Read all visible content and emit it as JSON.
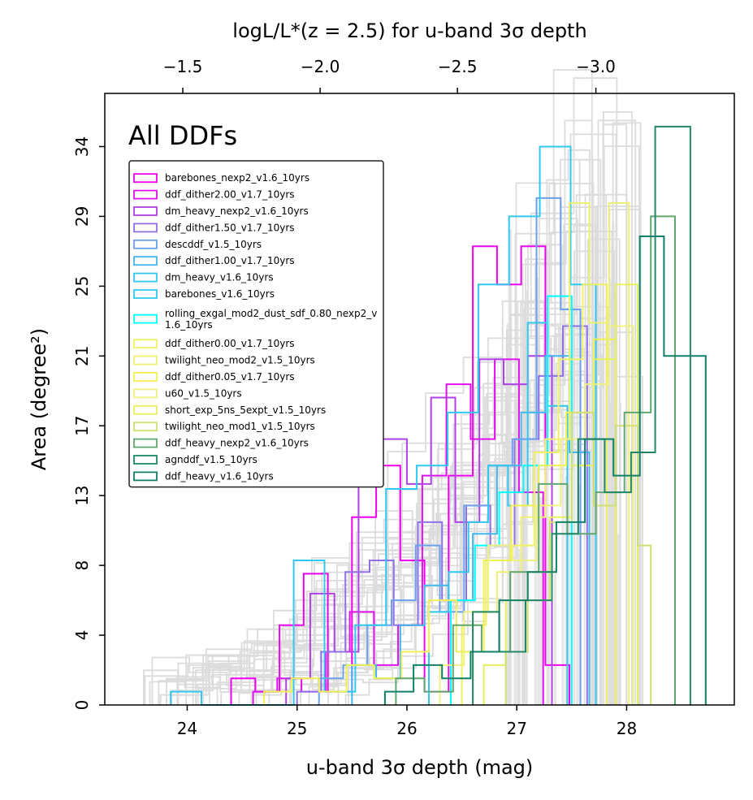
{
  "chart_data": {
    "type": "step-histogram",
    "annotation": "All DDFs",
    "xlabel": "u-band 3σ depth (mag)",
    "ylabel": "Area (degree²)",
    "top_axis_label": "logL/L*(z = 2.5) for u-band 3σ depth",
    "xlim": [
      23.25,
      28.98
    ],
    "ylim": [
      0,
      36.8
    ],
    "x_ticks": [
      24,
      25,
      26,
      27,
      28
    ],
    "x_tick_labels": [
      "24",
      "25",
      "26",
      "27",
      "28"
    ],
    "y_ticks": [
      0,
      4.2,
      8.4,
      12.6,
      16.8,
      21.0,
      25.2,
      29.4,
      33.6
    ],
    "y_tick_labels": [
      "0",
      "4",
      "8",
      "13",
      "17",
      "21",
      "25",
      "29",
      "34"
    ],
    "top_ticks": [
      {
        "x": 23.96,
        "label": "−1.5"
      },
      {
        "x": 25.21,
        "label": "−2.0"
      },
      {
        "x": 26.46,
        "label": "−2.5"
      },
      {
        "x": 27.72,
        "label": "−3.0"
      }
    ],
    "background_color": "#dcdcdc",
    "legend": {
      "position": "upper-left"
    },
    "series": [
      {
        "name": "barebones_nexp2_v1.6_10yrs",
        "color": "#ee00ee",
        "edges": [
          24.4,
          24.62,
          24.84,
          25.06,
          25.28,
          25.5,
          25.72,
          25.94,
          26.16,
          26.38,
          26.6,
          26.82,
          27.04,
          27.26,
          27.48
        ],
        "counts": [
          1.6,
          0.8,
          4.8,
          7.9,
          0.8,
          11.3,
          14.4,
          8.7,
          0.8,
          13.8,
          27.6,
          25.3,
          27.6,
          2.4
        ]
      },
      {
        "name": "ddf_dither2.00_v1.7_10yrs",
        "color": "#e010ee",
        "edges": [
          24.6,
          24.82,
          25.04,
          25.26,
          25.48,
          25.7,
          25.92,
          26.14,
          26.36,
          26.58,
          26.8,
          27.02,
          27.24
        ],
        "counts": [
          0.8,
          1.6,
          0.8,
          3.2,
          5.6,
          2.4,
          4.8,
          13.8,
          19.3,
          16.0,
          20.8,
          12.8
        ]
      },
      {
        "name": "dm_heavy_nexp2_v1.6_10yrs",
        "color": "#b040e8",
        "edges": [
          24.9,
          25.12,
          25.34,
          25.56,
          25.78,
          26.0,
          26.22,
          26.44,
          26.66,
          26.88,
          27.1,
          27.32
        ],
        "counts": [
          1.6,
          6.7,
          3.2,
          13.3,
          16.0,
          13.3,
          18.5,
          11.0,
          20.8,
          19.3,
          21.0
        ]
      },
      {
        "name": "ddf_dither1.50_v1.7_10yrs",
        "color": "#9070e8",
        "edges": [
          25.0,
          25.22,
          25.44,
          25.66,
          25.88,
          26.1,
          26.32,
          26.54,
          26.76,
          26.98,
          27.2,
          27.42,
          27.64
        ],
        "counts": [
          0.8,
          3.2,
          8.0,
          8.7,
          4.8,
          11.0,
          6.3,
          12.0,
          9.6,
          16.0,
          19.8,
          22.8
        ]
      },
      {
        "name": "descddf_v1.5_10yrs",
        "color": "#6aa0ee",
        "edges": [
          25.2,
          25.42,
          25.64,
          25.86,
          26.08,
          26.3,
          26.52,
          26.74,
          26.96,
          27.18,
          27.4,
          27.58
        ],
        "counts": [
          1.6,
          2.4,
          4.8,
          6.3,
          9.6,
          5.6,
          12.0,
          14.4,
          16.0,
          30.5,
          23.8
        ]
      },
      {
        "name": "ddf_dither1.00_v1.7_10yrs",
        "color": "#40b8ee",
        "edges": [
          25.5,
          25.72,
          25.94,
          26.16,
          26.38,
          26.6,
          26.82,
          27.04,
          27.26,
          27.48,
          27.66
        ],
        "counts": [
          2.4,
          1.6,
          4.8,
          7.2,
          6.3,
          10.3,
          14.4,
          17.6,
          21.0,
          15.2
        ]
      },
      {
        "name": "dm_heavy_v1.6_10yrs",
        "color": "#30c8ee",
        "edges": [
          26.2,
          26.38,
          26.56,
          26.74,
          26.92,
          27.1,
          27.28,
          27.46
        ],
        "counts": [
          5.6,
          8.0,
          11.0,
          14.4,
          12.0,
          23.0,
          18.0
        ]
      },
      {
        "name": "barebones_v1.6_10yrs",
        "color": "#30c8f0",
        "edges": [
          23.85,
          24.13,
          24.41,
          24.69,
          24.97,
          25.25,
          25.53,
          25.81,
          26.09,
          26.37,
          26.65,
          26.93,
          27.21,
          27.49,
          27.72
        ],
        "counts": [
          0.8,
          0,
          0,
          0,
          8.7,
          0.8,
          4.8,
          13.0,
          14.4,
          17.6,
          25.3,
          29.4,
          33.6,
          25.3
        ]
      },
      {
        "name": "rolling_exgal_mod2_dust_sdf_0.80_nexp2_v1.6_10yrs",
        "color": "#00ffff",
        "edges": [
          26.4,
          26.62,
          26.84,
          27.06,
          27.28,
          27.5
        ],
        "counts": [
          6.3,
          9.6,
          12.8,
          14.4,
          24.6
        ]
      },
      {
        "name": "ddf_dither0.00_v1.7_10yrs",
        "color": "#f0f060",
        "edges": [
          26.5,
          26.72,
          26.94,
          27.16,
          27.38,
          27.6,
          27.82
        ],
        "counts": [
          4.8,
          8.7,
          9.6,
          15.2,
          20.8,
          25.3
        ]
      },
      {
        "name": "twilight_neo_mod2_v1.5_10yrs",
        "color": "#f0f070",
        "edges": [
          26.6,
          26.82,
          27.04,
          27.26,
          27.48,
          27.66,
          27.84,
          28.02
        ],
        "counts": [
          5.6,
          8.0,
          11.3,
          16.0,
          30.2,
          23.0,
          30.2
        ]
      },
      {
        "name": "ddf_dither0.05_v1.7_10yrs",
        "color": "#f0f050",
        "edges": [
          24.7,
          24.95,
          25.2,
          25.45,
          25.7,
          25.95,
          26.2,
          26.45,
          26.7,
          26.95,
          27.2,
          27.45,
          27.7,
          27.9
        ],
        "counts": [
          0.8,
          1.6,
          0.8,
          2.4,
          1.6,
          3.2,
          6.3,
          3.2,
          8.7,
          12.0,
          14.4,
          17.6,
          22.0
        ]
      },
      {
        "name": "u60_v1.5_10yrs",
        "color": "#f0f080",
        "edges": [
          26.3,
          26.52,
          26.74,
          26.96,
          27.18,
          27.4,
          27.62,
          27.84,
          28.06
        ],
        "counts": [
          2.4,
          5.6,
          9.6,
          8.7,
          12.0,
          16.0,
          19.3,
          22.8
        ]
      },
      {
        "name": "short_exp_5ns_5expt_v1.5_10yrs",
        "color": "#e8f060",
        "edges": [
          26.7,
          26.9,
          27.1,
          27.3,
          27.5,
          27.7,
          27.9,
          28.1
        ],
        "counts": [
          2.4,
          6.3,
          8.0,
          11.3,
          14.4,
          20.8,
          25.3
        ]
      },
      {
        "name": "twilight_neo_mod1_v1.5_10yrs",
        "color": "#d0e070",
        "edges": [
          26.9,
          27.1,
          27.3,
          27.5,
          27.7,
          27.9,
          28.1,
          28.22
        ],
        "counts": [
          3.2,
          6.3,
          11.0,
          17.6,
          12.0,
          16.8,
          9.6
        ]
      },
      {
        "name": "ddf_heavy_nexp2_v1.6_10yrs",
        "color": "#60a870",
        "edges": [
          25.9,
          26.16,
          26.42,
          26.68,
          26.94,
          27.2,
          27.46,
          27.72,
          27.98,
          28.22,
          28.44
        ],
        "counts": [
          1.6,
          0.8,
          4.8,
          3.2,
          8.0,
          13.3,
          10.3,
          12.8,
          17.6,
          29.4
        ]
      },
      {
        "name": "agnddf_v1.5_10yrs",
        "color": "#208868",
        "edges": [
          26.6,
          26.84,
          27.08,
          27.32,
          27.56,
          27.8,
          28.04,
          28.26,
          28.58
        ],
        "counts": [
          5.6,
          3.2,
          6.3,
          10.3,
          16.0,
          12.8,
          15.2,
          34.8
        ]
      },
      {
        "name": "ddf_heavy_v1.6_10yrs",
        "color": "#108068",
        "edges": [
          25.8,
          26.06,
          26.32,
          26.58,
          26.84,
          27.1,
          27.36,
          27.62,
          27.88,
          28.12,
          28.34,
          28.72
        ],
        "counts": [
          0.8,
          2.4,
          1.6,
          3.2,
          6.3,
          8.0,
          11.0,
          16.0,
          13.8,
          28.2,
          21.0
        ]
      }
    ]
  }
}
